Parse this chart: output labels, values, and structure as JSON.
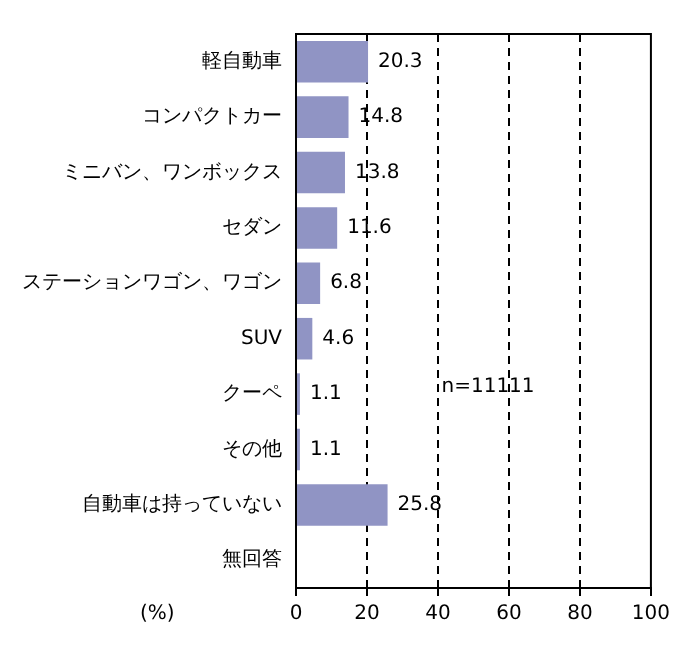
{
  "chart_data": {
    "type": "bar",
    "orientation": "horizontal",
    "categories": [
      "軽自動車",
      "コンパクトカー",
      "ミニバン、ワンボックス",
      "セダン",
      "ステーションワゴン、ワゴン",
      "SUV",
      "クーペ",
      "その他",
      "自動車は持っていない",
      "無回答"
    ],
    "values": [
      20.3,
      14.8,
      13.8,
      11.6,
      6.8,
      4.6,
      1.1,
      1.1,
      25.8,
      null
    ],
    "color": "#9094c4",
    "xlim": [
      0,
      100
    ],
    "xticks": [
      0,
      20,
      40,
      60,
      80,
      100
    ],
    "grid": "x",
    "data_labels": true,
    "legend": false,
    "xlabel": "(%)",
    "annotations": [
      "n=11111"
    ]
  }
}
